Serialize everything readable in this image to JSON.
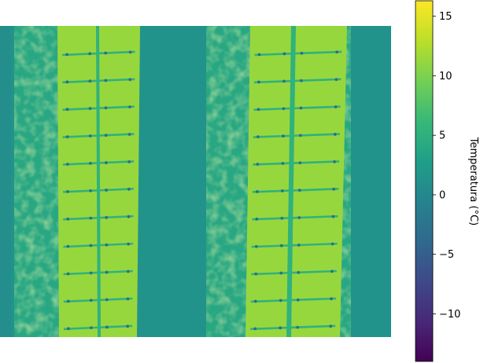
{
  "chart_data": {
    "type": "heatmap",
    "title": "",
    "xlabel": "",
    "ylabel": "",
    "axes_visible": false,
    "colormap": "viridis",
    "colorbar": {
      "label": "Temperatura (°C)",
      "vmin": -14.0,
      "vmax": 16.3,
      "ticks": [
        15,
        10,
        5,
        0,
        -5,
        -10
      ],
      "tick_labels": [
        "15",
        "10",
        "5",
        "0",
        "−5",
        "−10"
      ]
    },
    "image_description_values": {
      "background_ground_temp": 1.5,
      "vegetation_strip_temp": 4.5,
      "panel_cell_temp": 11.5,
      "panel_gap_temp": 5.5,
      "cold_dot_temp": -3.5
    },
    "panel_arrays": [
      {
        "name": "left",
        "columns": 2,
        "rows": 11
      },
      {
        "name": "right",
        "columns": 2,
        "rows": 11
      }
    ]
  },
  "colors": {
    "viridis_stops": [
      "#440154",
      "#482878",
      "#3e4989",
      "#31688e",
      "#26828e",
      "#1f9e89",
      "#35b779",
      "#6ece58",
      "#b5de2b",
      "#fde725"
    ]
  }
}
